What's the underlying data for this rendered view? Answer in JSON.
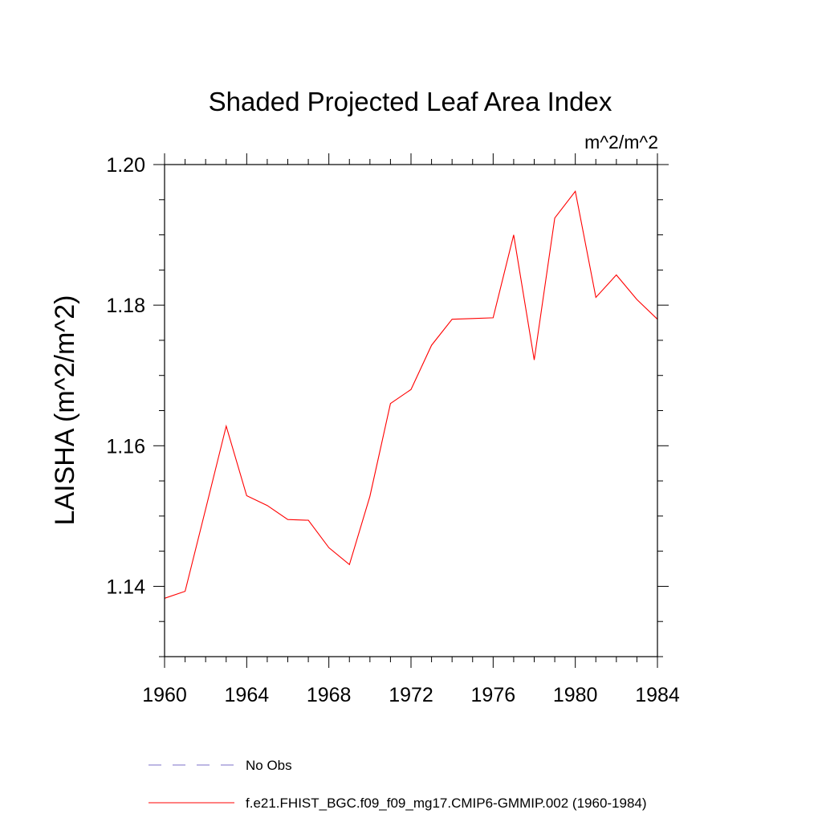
{
  "chart_data": {
    "type": "line",
    "title": "Shaded Projected Leaf Area Index",
    "units": "m^2/m^2",
    "ylabel": "LAISHA  (m^2/m^2)",
    "xlabel": "",
    "xlim": [
      1960,
      1984
    ],
    "ylim": [
      1.13,
      1.2
    ],
    "x_ticks": [
      "1960",
      "1964",
      "1968",
      "1972",
      "1976",
      "1980",
      "1984"
    ],
    "y_ticks": [
      "1.14",
      "1.16",
      "1.18",
      "1.20"
    ],
    "series": [
      {
        "name": "f.e21.FHIST_BGC.f09_f09_mg17.CMIP6-GMMIP.002 (1960-1984)",
        "color": "#ff0000",
        "style": "solid",
        "x": [
          1960,
          1961,
          1962,
          1963,
          1964,
          1965,
          1966,
          1967,
          1968,
          1969,
          1970,
          1971,
          1972,
          1973,
          1974,
          1975,
          1976,
          1977,
          1978,
          1979,
          1980,
          1981,
          1982,
          1983,
          1984
        ],
        "values": [
          1.1383,
          1.1393,
          1.151,
          1.1628,
          1.1529,
          1.1515,
          1.1495,
          1.1494,
          1.1455,
          1.1431,
          1.1528,
          1.166,
          1.168,
          1.1743,
          1.178,
          1.1781,
          1.1782,
          1.19,
          1.1722,
          1.1924,
          1.1962,
          1.1811,
          1.1843,
          1.1808,
          1.178
        ]
      }
    ],
    "legend": [
      {
        "label": "No Obs",
        "color": "#7b6fc9",
        "style": "dashed"
      },
      {
        "label": "f.e21.FHIST_BGC.f09_f09_mg17.CMIP6-GMMIP.002 (1960-1984)",
        "color": "#ff0000",
        "style": "solid"
      }
    ]
  }
}
